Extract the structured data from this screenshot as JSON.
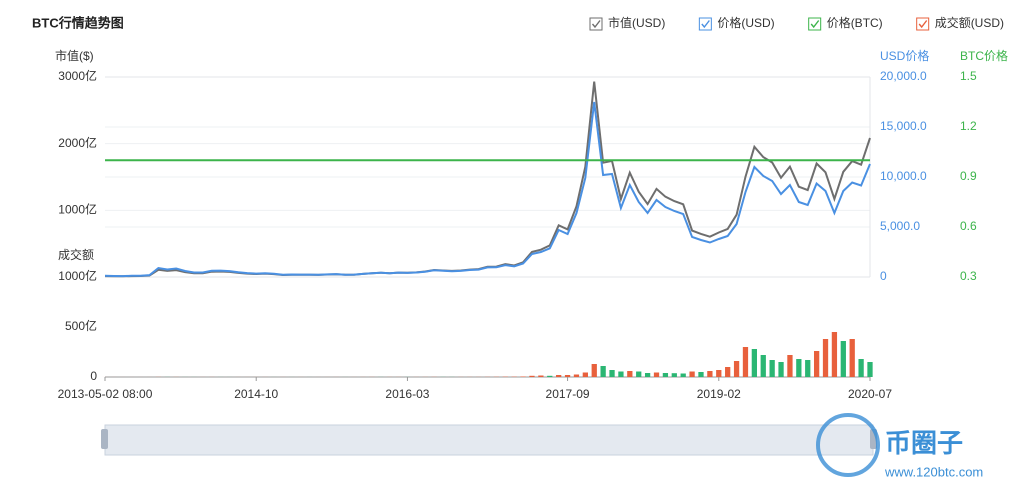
{
  "chart_data": {
    "type": "line",
    "title": "BTC行情趋势图",
    "ylabel": "市值($)",
    "y2label": "USD价格",
    "y3label": "BTC价格",
    "y4label": "成交额",
    "categories": [
      "2013-05-02 08:00",
      null,
      null,
      null,
      null,
      null,
      null,
      null,
      null,
      null,
      null,
      null,
      null,
      null,
      null,
      null,
      null,
      "2014-10",
      null,
      null,
      null,
      null,
      null,
      null,
      null,
      null,
      null,
      null,
      null,
      null,
      null,
      null,
      null,
      null,
      "2016-03",
      null,
      null,
      null,
      null,
      null,
      null,
      null,
      null,
      null,
      null,
      null,
      null,
      null,
      null,
      null,
      null,
      null,
      "2017-09",
      null,
      null,
      null,
      null,
      null,
      null,
      null,
      null,
      null,
      null,
      null,
      null,
      null,
      null,
      null,
      null,
      "2019-02",
      null,
      null,
      null,
      null,
      null,
      null,
      null,
      null,
      null,
      null,
      null,
      null,
      null,
      null,
      null,
      null,
      "2020-07"
    ],
    "ylim": [
      0,
      3000
    ],
    "yticks": [
      {
        "value": 1000,
        "label": "1000亿"
      },
      {
        "value": 2000,
        "label": "2000亿"
      },
      {
        "value": 3000,
        "label": "3000亿"
      }
    ],
    "y2lim": [
      0,
      20000
    ],
    "y2ticks": [
      0,
      {
        "value": 5000,
        "label": "5,000.0"
      },
      {
        "value": 10000,
        "label": "10,000.0"
      },
      {
        "value": 15000,
        "label": "15,000.0"
      },
      {
        "value": 20000,
        "label": "20,000.0"
      }
    ],
    "y3lim": [
      0.3,
      1.5
    ],
    "y3ticks": [
      0.3,
      0.6,
      0.9,
      1.2,
      1.5
    ],
    "y4lim": [
      0,
      1000
    ],
    "y4ticks": [
      0,
      {
        "value": 500,
        "label": "500亿"
      },
      {
        "value": 1000,
        "label": "1000亿"
      }
    ],
    "grid": true,
    "legend": "top-right",
    "series": [
      {
        "name": "市值(USD)",
        "color": "#6e6e6e",
        "axis": "y",
        "type": "line",
        "values": [
          13,
          11,
          10,
          14,
          15,
          22,
          108,
          91,
          104,
          74,
          56,
          57,
          79,
          82,
          76,
          62,
          51,
          45,
          51,
          43,
          30,
          35,
          34,
          33,
          32,
          37,
          41,
          33,
          34,
          46,
          57,
          65,
          56,
          66,
          63,
          69,
          82,
          105,
          98,
          91,
          97,
          111,
          118,
          155,
          156,
          193,
          173,
          220,
          377,
          410,
          474,
          776,
          714,
          1062,
          1653,
          2931,
          1714,
          1741,
          1170,
          1564,
          1279,
          1094,
          1321,
          1204,
          1139,
          1090,
          696,
          646,
          604,
          667,
          722,
          935,
          1505,
          1953,
          1798,
          1718,
          1490,
          1656,
          1354,
          1303,
          1702,
          1570,
          1171,
          1578,
          1739,
          1685,
          2085
        ]
      },
      {
        "name": "价格(USD)",
        "color": "#4a90e2",
        "axis": "y2",
        "type": "line",
        "values": [
          120,
          100,
          90,
          120,
          130,
          190,
          900,
          750,
          850,
          600,
          450,
          450,
          620,
          640,
          590,
          480,
          390,
          340,
          380,
          320,
          220,
          250,
          245,
          235,
          230,
          260,
          285,
          230,
          235,
          310,
          380,
          430,
          370,
          435,
          415,
          450,
          530,
          670,
          625,
          575,
          610,
          700,
          740,
          960,
          970,
          1190,
          1070,
          1350,
          2300,
          2500,
          2870,
          4700,
          4300,
          6400,
          9900,
          17500,
          10200,
          10300,
          6900,
          9200,
          7500,
          6400,
          7700,
          7000,
          6600,
          6300,
          4000,
          3700,
          3450,
          3800,
          4100,
          5300,
          8500,
          11000,
          10100,
          9600,
          8300,
          9200,
          7500,
          7200,
          9350,
          8600,
          6400,
          8600,
          9450,
          9150,
          11300
        ]
      },
      {
        "name": "价格(BTC)",
        "color": "#3cb44b",
        "axis": "y3",
        "type": "line",
        "values": [
          1,
          1,
          1,
          1,
          1,
          1,
          1,
          1,
          1,
          1,
          1,
          1,
          1,
          1,
          1,
          1,
          1,
          1,
          1,
          1,
          1,
          1,
          1,
          1,
          1,
          1,
          1,
          1,
          1,
          1,
          1,
          1,
          1,
          1,
          1,
          1,
          1,
          1,
          1,
          1,
          1,
          1,
          1,
          1,
          1,
          1,
          1,
          1,
          1,
          1,
          1,
          1,
          1,
          1,
          1,
          1,
          1,
          1,
          1,
          1,
          1,
          1,
          1,
          1,
          1,
          1,
          1,
          1,
          1,
          1,
          1,
          1,
          1,
          1,
          1,
          1,
          1,
          1,
          1,
          1,
          1,
          1,
          1,
          1,
          1,
          1,
          1
        ]
      },
      {
        "name": "成交额(USD)",
        "color": "#e8603c",
        "down_color": "#2bb673",
        "axis": "y4",
        "type": "bar",
        "values": [
          0.2,
          0.2,
          0.2,
          0.2,
          0.2,
          0.3,
          1,
          0.8,
          0.8,
          0.6,
          0.5,
          0.5,
          0.6,
          0.5,
          0.4,
          0.4,
          0.4,
          0.4,
          0.5,
          0.4,
          0.5,
          0.4,
          0.4,
          0.3,
          0.3,
          0.4,
          0.5,
          0.4,
          0.4,
          0.6,
          0.9,
          0.8,
          0.8,
          0.8,
          0.7,
          0.7,
          0.9,
          1.2,
          1,
          0.9,
          0.9,
          1,
          1.1,
          1.6,
          2,
          3,
          3,
          5,
          12,
          15,
          12,
          20,
          20,
          25,
          45,
          130,
          110,
          70,
          55,
          60,
          55,
          40,
          45,
          40,
          38,
          35,
          55,
          50,
          60,
          70,
          100,
          160,
          300,
          280,
          220,
          170,
          150,
          220,
          180,
          170,
          260,
          380,
          450,
          360,
          380,
          180,
          150
        ]
      }
    ],
    "watermark": {
      "title": "币圈子",
      "url": "www.120btc.com"
    }
  }
}
